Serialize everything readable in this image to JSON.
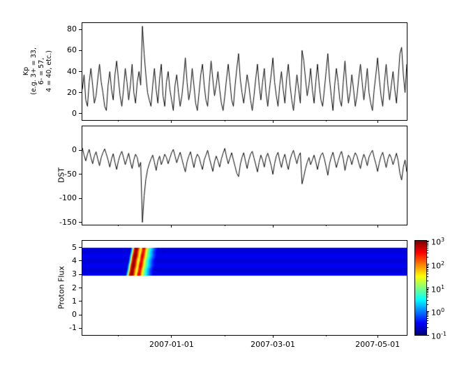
{
  "colors": {
    "background": "#ffffff",
    "axis": "#000000",
    "line": "#000000"
  },
  "x_axis": {
    "total_days": 189,
    "major_ticks": [
      {
        "label": "2007-01-01",
        "day": 52
      },
      {
        "label": "2007-03-01",
        "day": 111
      },
      {
        "label": "2007-05-01",
        "day": 172
      }
    ],
    "minor_tick_days": [
      21,
      83,
      142
    ]
  },
  "chart_data": [
    {
      "type": "line",
      "name": "Kp",
      "ylabel": "Kp\n(e.g. 3+ = 33,\n6- = 57,\n4 = 40, etc.)",
      "ylim": [
        -6,
        86
      ],
      "yticks": [
        80,
        60,
        40,
        20,
        0
      ],
      "grid": false,
      "values": [
        23,
        37,
        13,
        7,
        30,
        43,
        27,
        10,
        17,
        33,
        47,
        30,
        20,
        7,
        3,
        27,
        40,
        23,
        13,
        37,
        50,
        33,
        17,
        7,
        23,
        43,
        30,
        13,
        27,
        47,
        20,
        10,
        30,
        40,
        27,
        83,
        57,
        37,
        20,
        13,
        7,
        27,
        43,
        23,
        10,
        33,
        47,
        17,
        7,
        30,
        40,
        23,
        13,
        3,
        27,
        37,
        20,
        7,
        17,
        33,
        53,
        30,
        13,
        23,
        43,
        27,
        10,
        3,
        20,
        37,
        47,
        27,
        13,
        7,
        30,
        50,
        33,
        17,
        27,
        40,
        23,
        10,
        3,
        17,
        33,
        47,
        30,
        13,
        7,
        27,
        43,
        57,
        33,
        20,
        10,
        23,
        37,
        27,
        13,
        3,
        17,
        33,
        47,
        27,
        13,
        30,
        43,
        20,
        7,
        23,
        37,
        53,
        30,
        17,
        7,
        27,
        40,
        23,
        10,
        33,
        47,
        27,
        13,
        3,
        20,
        37,
        23,
        10,
        60,
        50,
        33,
        17,
        27,
        43,
        23,
        10,
        30,
        47,
        27,
        13,
        7,
        23,
        40,
        57,
        33,
        17,
        3,
        27,
        43,
        30,
        13,
        7,
        30,
        50,
        27,
        10,
        20,
        37,
        23,
        7,
        17,
        33,
        47,
        30,
        13,
        27,
        43,
        20,
        10,
        3,
        23,
        37,
        53,
        33,
        17,
        7,
        30,
        47,
        27,
        13,
        27,
        40,
        23,
        10,
        33,
        57,
        63,
        37,
        20,
        47
      ]
    },
    {
      "type": "line",
      "name": "DST",
      "ylabel": "DST",
      "ylim": [
        -155,
        50
      ],
      "yticks": [
        0,
        -50,
        -100,
        -150
      ],
      "grid": false,
      "values": [
        5,
        -10,
        -22,
        -8,
        2,
        -15,
        -28,
        -12,
        -3,
        -18,
        -32,
        -15,
        -5,
        3,
        -8,
        -20,
        -35,
        -18,
        -7,
        -25,
        -40,
        -22,
        -10,
        -2,
        -15,
        -30,
        -18,
        -6,
        -24,
        -38,
        -20,
        -8,
        -15,
        -35,
        -25,
        -150,
        -95,
        -60,
        -40,
        -28,
        -18,
        -10,
        -25,
        -42,
        -22,
        -12,
        -30,
        -20,
        -8,
        -15,
        -28,
        -16,
        -5,
        2,
        -12,
        -26,
        -14,
        -4,
        -18,
        -32,
        -45,
        -24,
        -12,
        -3,
        -20,
        -36,
        -18,
        -8,
        -14,
        -28,
        -40,
        -20,
        -10,
        0,
        -16,
        -30,
        -44,
        -24,
        -12,
        -22,
        -35,
        -18,
        -6,
        4,
        -14,
        -28,
        -16,
        -5,
        -20,
        -34,
        -48,
        -55,
        -30,
        -15,
        -5,
        -22,
        -38,
        -20,
        -8,
        -2,
        -16,
        -30,
        -45,
        -25,
        -10,
        -20,
        -35,
        -15,
        -6,
        -18,
        -32,
        -50,
        -28,
        -12,
        -4,
        -22,
        -36,
        -18,
        -8,
        -26,
        -40,
        -20,
        -8,
        0,
        -15,
        -28,
        -12,
        -5,
        -70,
        -55,
        -38,
        -25,
        -15,
        -30,
        -20,
        -10,
        -24,
        -40,
        -22,
        -10,
        -5,
        -18,
        -34,
        -52,
        -28,
        -14,
        -4,
        -20,
        -36,
        -22,
        -10,
        -2,
        -18,
        -42,
        -24,
        -10,
        -16,
        -30,
        -15,
        -5,
        -12,
        -26,
        -38,
        -20,
        -8,
        -18,
        -32,
        -14,
        -6,
        0,
        -15,
        -28,
        -44,
        -26,
        -12,
        -4,
        -20,
        -36,
        -18,
        -8,
        -16,
        -30,
        -18,
        -6,
        -22,
        -48,
        -62,
        -35,
        -20,
        -45
      ]
    },
    {
      "type": "heatmap",
      "name": "Proton Flux",
      "ylabel": "Proton Flux",
      "ylim": [
        -1.5,
        5.5
      ],
      "yticks": [
        5,
        4,
        3,
        2,
        1,
        0,
        -1
      ],
      "band_y": [
        2.9,
        5.0
      ],
      "flux_log10": {
        "n_points": 190,
        "baseline": -0.6,
        "event_start_index": 26,
        "event_values": [
          0.5,
          2.2,
          3.0,
          2.8,
          2.0,
          1.2,
          2.4,
          2.6,
          1.8,
          1.2,
          0.8,
          0.4,
          0.1,
          -0.2,
          -0.4
        ]
      },
      "colorbar": {
        "colormap": "jet",
        "min_log10": -1,
        "max_log10": 3,
        "tick_labels": [
          {
            "base": "10",
            "exp": "3"
          },
          {
            "base": "10",
            "exp": "2"
          },
          {
            "base": "10",
            "exp": "1"
          },
          {
            "base": "10",
            "exp": "0"
          },
          {
            "base": "10",
            "exp": "-1"
          }
        ]
      }
    }
  ]
}
